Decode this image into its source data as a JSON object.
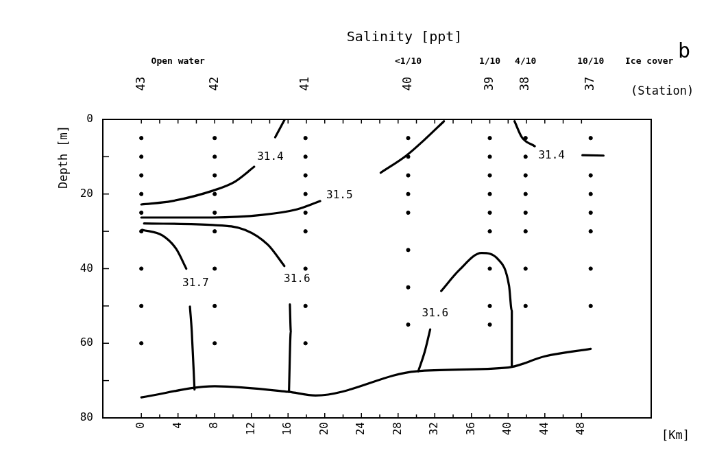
{
  "chart_data": {
    "type": "line",
    "title": "Salinity [ppt]",
    "xlabel": "[Km]",
    "ylabel": "Depth [m]",
    "xlim": [
      -4.2,
      55.6
    ],
    "ylim": [
      80,
      0
    ],
    "xticks": [
      0,
      {
        "value": 2,
        "label": null
      },
      4,
      {
        "value": 6,
        "label": null
      },
      8,
      {
        "value": 10,
        "label": null
      },
      12,
      {
        "value": 14,
        "label": null
      },
      16,
      {
        "value": 18,
        "label": null
      },
      20,
      {
        "value": 22,
        "label": null
      },
      24,
      {
        "value": 26,
        "label": null
      },
      28,
      {
        "value": 30,
        "label": null
      },
      32,
      {
        "value": 34,
        "label": null
      },
      36,
      {
        "value": 38,
        "label": null
      },
      40,
      {
        "value": 42,
        "label": null
      },
      44,
      {
        "value": 46,
        "label": null
      },
      48
    ],
    "yticks": [
      0,
      {
        "value": 10,
        "label": null
      },
      20,
      {
        "value": 30,
        "label": null
      },
      40,
      {
        "value": 50,
        "label": null
      },
      60,
      {
        "value": 70,
        "label": null
      },
      80
    ],
    "grid": false,
    "legend": false,
    "series": [
      {
        "type": "scatter",
        "color": "#000000",
        "marker": "circle",
        "x": [
          0,
          0,
          0,
          0,
          0,
          0,
          0,
          0,
          0,
          8,
          8,
          8,
          8,
          8,
          8,
          8,
          8,
          8,
          17.9,
          17.9,
          17.9,
          17.9,
          17.9,
          17.9,
          17.9,
          17.9,
          17.9,
          29.1,
          29.1,
          29.1,
          29.1,
          29.1,
          29.1,
          29.1,
          29.1,
          38,
          38,
          38,
          38,
          38,
          38,
          38,
          38,
          38,
          41.9,
          41.9,
          41.9,
          41.9,
          41.9,
          41.9,
          41.9,
          41.9,
          49,
          49,
          49,
          49,
          49,
          49,
          49
        ],
        "values": [
          5,
          10,
          15,
          20,
          25,
          30,
          40,
          50,
          60,
          5,
          10,
          15,
          20,
          25,
          30,
          40,
          50,
          60,
          5,
          10,
          15,
          20,
          25,
          30,
          40,
          50,
          60,
          5,
          10,
          15,
          20,
          25,
          35,
          45,
          55,
          5,
          10,
          15,
          20,
          25,
          30,
          40,
          50,
          55,
          5,
          10,
          15,
          20,
          25,
          30,
          40,
          50,
          5,
          15,
          20,
          25,
          30,
          40,
          50
        ]
      },
      {
        "type": "line",
        "color": "#000000",
        "x": [
          0,
          3.3,
          7.8,
          10.2,
          12.3
        ],
        "values": [
          22.8,
          21.9,
          19.1,
          16.7,
          12.7
        ]
      },
      {
        "type": "line",
        "color": "#000000",
        "x": [
          14.6,
          15.6
        ],
        "values": [
          4.8,
          0.2
        ]
      },
      {
        "type": "line",
        "color": "#000000",
        "x": [
          0,
          7.8,
          13.2,
          17,
          19.5
        ],
        "values": [
          26.3,
          26.3,
          25.6,
          24.1,
          21.9
        ]
      },
      {
        "type": "line",
        "color": "#000000",
        "x": [
          26.1,
          28.9,
          30.9,
          33
        ],
        "values": [
          14.3,
          9.7,
          5.4,
          0.5
        ]
      },
      {
        "type": "line",
        "color": "#000000",
        "x": [
          0.3,
          7.8,
          11.3,
          13.8,
          15.6
        ],
        "values": [
          27.9,
          28.3,
          29.6,
          33.6,
          39.3
        ]
      },
      {
        "type": "line",
        "color": "#000000",
        "x": [
          0.1,
          2.3,
          3.8,
          4.9
        ],
        "values": [
          29.6,
          31.1,
          34.7,
          40
        ]
      },
      {
        "type": "line",
        "color": "#000000",
        "x": [
          5.3,
          5.5,
          5.8
        ],
        "values": [
          50.2,
          56.8,
          72.4
        ]
      },
      {
        "type": "line",
        "color": "#000000",
        "x": [
          16.2,
          16.3,
          16.1
        ],
        "values": [
          49.6,
          56.8,
          73
        ]
      },
      {
        "type": "line",
        "color": "#000000",
        "x": [
          30.2,
          30.9,
          31.5
        ],
        "values": [
          67.5,
          62.3,
          56.3
        ]
      },
      {
        "type": "line",
        "color": "#000000",
        "x": [
          32.7,
          34.7,
          37.1,
          38.9,
          40.1,
          40.4,
          40.4
        ],
        "values": [
          46,
          40.3,
          35.8,
          37.5,
          44.6,
          51.3,
          66
        ]
      },
      {
        "type": "line",
        "color": "#000000",
        "x": [
          40.7,
          41.5,
          42.9
        ],
        "values": [
          0.5,
          4.8,
          7.2
        ]
      },
      {
        "type": "line",
        "color": "#000000",
        "x": [
          48.1,
          50.4
        ],
        "values": [
          9.6,
          9.7
        ]
      },
      {
        "type": "line",
        "color": "#000000",
        "x": [
          0,
          8,
          16,
          19,
          30,
          40,
          44,
          49
        ],
        "values": [
          74.5,
          71.5,
          73,
          74,
          67.5,
          66.5,
          63.5,
          61.5
        ]
      }
    ],
    "annotations": [
      "b",
      "43",
      "42",
      "41",
      "40",
      "39",
      "38",
      "37",
      "(Station)",
      "Open water",
      "<1/10",
      "1/10",
      "4/10",
      "10/10",
      "Ice cover",
      {
        "text": "31.4",
        "x": 12.3,
        "y": 12.7
      },
      {
        "text": "31.5",
        "x": 19.5,
        "y": 21.9
      },
      {
        "text": "31.7",
        "x": 4.9,
        "y": 40
      },
      {
        "text": "31.6",
        "x": 15.6,
        "y": 39.3
      },
      {
        "text": "31.6",
        "x": 31.5,
        "y": 56.3
      },
      {
        "text": "31.4",
        "x": 42.9,
        "y": 7.2
      }
    ]
  }
}
